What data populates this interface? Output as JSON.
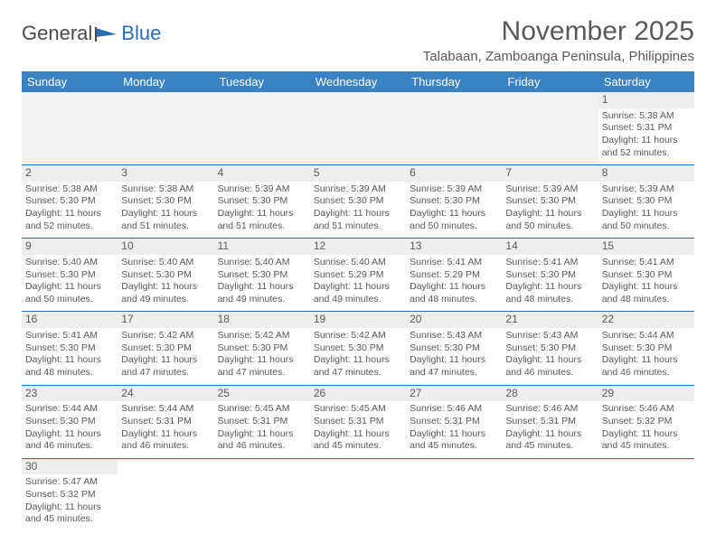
{
  "logo": {
    "text1": "General",
    "text2": "Blue"
  },
  "title": "November 2025",
  "location": "Talabaan, Zamboanga Peninsula, Philippines",
  "header_bg": "#3b82c4",
  "weekdays": [
    "Sunday",
    "Monday",
    "Tuesday",
    "Wednesday",
    "Thursday",
    "Friday",
    "Saturday"
  ],
  "first_weekday_index": 6,
  "days": [
    {
      "n": 1,
      "sunrise": "5:38 AM",
      "sunset": "5:31 PM",
      "daylight": "11 hours and 52 minutes."
    },
    {
      "n": 2,
      "sunrise": "5:38 AM",
      "sunset": "5:30 PM",
      "daylight": "11 hours and 52 minutes."
    },
    {
      "n": 3,
      "sunrise": "5:38 AM",
      "sunset": "5:30 PM",
      "daylight": "11 hours and 51 minutes."
    },
    {
      "n": 4,
      "sunrise": "5:39 AM",
      "sunset": "5:30 PM",
      "daylight": "11 hours and 51 minutes."
    },
    {
      "n": 5,
      "sunrise": "5:39 AM",
      "sunset": "5:30 PM",
      "daylight": "11 hours and 51 minutes."
    },
    {
      "n": 6,
      "sunrise": "5:39 AM",
      "sunset": "5:30 PM",
      "daylight": "11 hours and 50 minutes."
    },
    {
      "n": 7,
      "sunrise": "5:39 AM",
      "sunset": "5:30 PM",
      "daylight": "11 hours and 50 minutes."
    },
    {
      "n": 8,
      "sunrise": "5:39 AM",
      "sunset": "5:30 PM",
      "daylight": "11 hours and 50 minutes."
    },
    {
      "n": 9,
      "sunrise": "5:40 AM",
      "sunset": "5:30 PM",
      "daylight": "11 hours and 50 minutes."
    },
    {
      "n": 10,
      "sunrise": "5:40 AM",
      "sunset": "5:30 PM",
      "daylight": "11 hours and 49 minutes."
    },
    {
      "n": 11,
      "sunrise": "5:40 AM",
      "sunset": "5:30 PM",
      "daylight": "11 hours and 49 minutes."
    },
    {
      "n": 12,
      "sunrise": "5:40 AM",
      "sunset": "5:29 PM",
      "daylight": "11 hours and 49 minutes."
    },
    {
      "n": 13,
      "sunrise": "5:41 AM",
      "sunset": "5:29 PM",
      "daylight": "11 hours and 48 minutes."
    },
    {
      "n": 14,
      "sunrise": "5:41 AM",
      "sunset": "5:30 PM",
      "daylight": "11 hours and 48 minutes."
    },
    {
      "n": 15,
      "sunrise": "5:41 AM",
      "sunset": "5:30 PM",
      "daylight": "11 hours and 48 minutes."
    },
    {
      "n": 16,
      "sunrise": "5:41 AM",
      "sunset": "5:30 PM",
      "daylight": "11 hours and 48 minutes."
    },
    {
      "n": 17,
      "sunrise": "5:42 AM",
      "sunset": "5:30 PM",
      "daylight": "11 hours and 47 minutes."
    },
    {
      "n": 18,
      "sunrise": "5:42 AM",
      "sunset": "5:30 PM",
      "daylight": "11 hours and 47 minutes."
    },
    {
      "n": 19,
      "sunrise": "5:42 AM",
      "sunset": "5:30 PM",
      "daylight": "11 hours and 47 minutes."
    },
    {
      "n": 20,
      "sunrise": "5:43 AM",
      "sunset": "5:30 PM",
      "daylight": "11 hours and 47 minutes."
    },
    {
      "n": 21,
      "sunrise": "5:43 AM",
      "sunset": "5:30 PM",
      "daylight": "11 hours and 46 minutes."
    },
    {
      "n": 22,
      "sunrise": "5:44 AM",
      "sunset": "5:30 PM",
      "daylight": "11 hours and 46 minutes."
    },
    {
      "n": 23,
      "sunrise": "5:44 AM",
      "sunset": "5:30 PM",
      "daylight": "11 hours and 46 minutes."
    },
    {
      "n": 24,
      "sunrise": "5:44 AM",
      "sunset": "5:31 PM",
      "daylight": "11 hours and 46 minutes."
    },
    {
      "n": 25,
      "sunrise": "5:45 AM",
      "sunset": "5:31 PM",
      "daylight": "11 hours and 46 minutes."
    },
    {
      "n": 26,
      "sunrise": "5:45 AM",
      "sunset": "5:31 PM",
      "daylight": "11 hours and 45 minutes."
    },
    {
      "n": 27,
      "sunrise": "5:46 AM",
      "sunset": "5:31 PM",
      "daylight": "11 hours and 45 minutes."
    },
    {
      "n": 28,
      "sunrise": "5:46 AM",
      "sunset": "5:31 PM",
      "daylight": "11 hours and 45 minutes."
    },
    {
      "n": 29,
      "sunrise": "5:46 AM",
      "sunset": "5:32 PM",
      "daylight": "11 hours and 45 minutes."
    },
    {
      "n": 30,
      "sunrise": "5:47 AM",
      "sunset": "5:32 PM",
      "daylight": "11 hours and 45 minutes."
    }
  ],
  "labels": {
    "sunrise": "Sunrise:",
    "sunset": "Sunset:",
    "daylight": "Daylight:"
  }
}
